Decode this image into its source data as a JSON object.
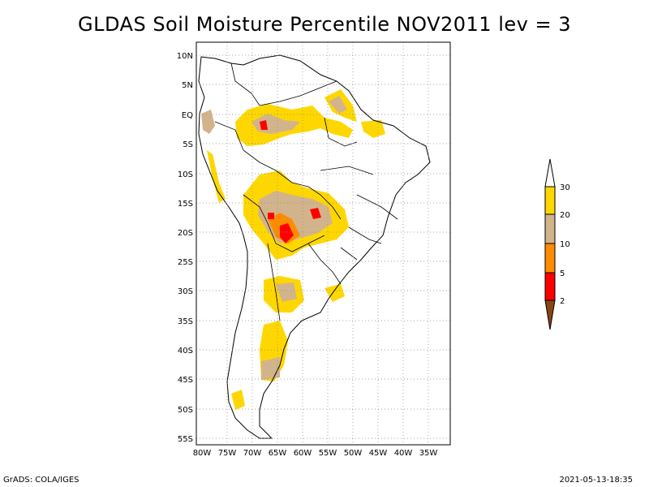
{
  "title": "GLDAS Soil Moisture Percentile NOV2011 lev = 3",
  "footer": {
    "left": "GrADS: COLA/IGES",
    "right": "2021-05-13-18:35"
  },
  "map": {
    "lon_ticks": [
      "80W",
      "75W",
      "70W",
      "65W",
      "60W",
      "55W",
      "50W",
      "45W",
      "40W",
      "35W"
    ],
    "lat_ticks": [
      "10N",
      "5N",
      "EQ",
      "5S",
      "10S",
      "15S",
      "20S",
      "25S",
      "30S",
      "35S",
      "40S",
      "45S",
      "50S",
      "55S"
    ]
  },
  "legend": {
    "labels": [
      "30",
      "20",
      "10",
      "5",
      "2"
    ],
    "colors": {
      "above30": "#ffffff",
      "20-30": "#ffd700",
      "10-20": "#d2b48c",
      "5-10": "#ff8c00",
      "2-5": "#ff0000",
      "below2": "#8b4513"
    }
  },
  "colors": {
    "yellow": "#ffd700",
    "tan": "#d2b48c",
    "orange": "#ff8c00",
    "red": "#ff0000"
  }
}
